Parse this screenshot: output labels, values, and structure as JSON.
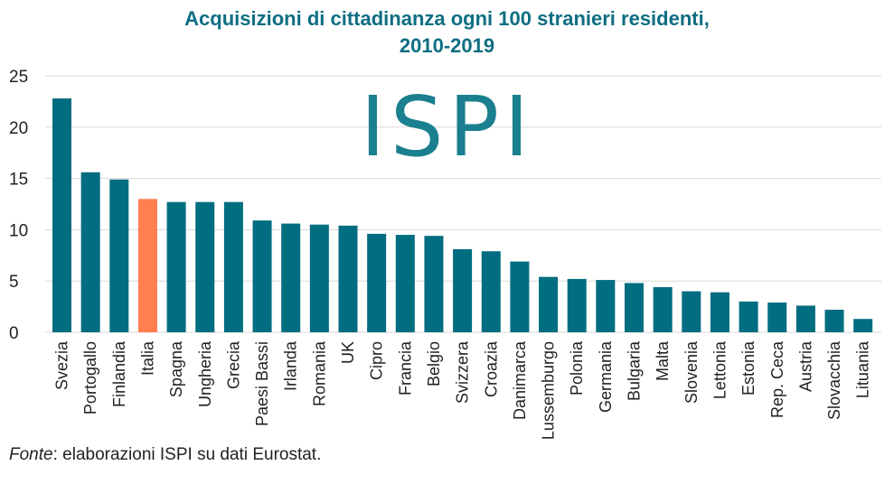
{
  "title_line1": "Acquisizioni di cittadinanza ogni 100 stranieri residenti,",
  "title_line2": "2010-2019",
  "logo_text": "ISPI",
  "source_label": "Fonte",
  "source_text": ": elaborazioni ISPI su dati Eurostat.",
  "colors": {
    "bar": "#006d80",
    "highlight": "#ff7f50",
    "logo": "#1a7f8e",
    "grid": "#d9d9d9"
  },
  "chart_data": {
    "type": "bar",
    "title": "Acquisizioni di cittadinanza ogni 100 stranieri residenti, 2010-2019",
    "xlabel": "",
    "ylabel": "",
    "ylim": [
      0,
      25
    ],
    "yticks": [
      0,
      5,
      10,
      15,
      20,
      25
    ],
    "grid": true,
    "highlight": "Italia",
    "categories": [
      "Svezia",
      "Portogallo",
      "Finlandia",
      "Italia",
      "Spagna",
      "Ungheria",
      "Grecia",
      "Paesi Bassi",
      "Irlanda",
      "Romania",
      "UK",
      "Cipro",
      "Francia",
      "Belgio",
      "Svizzera",
      "Croazia",
      "Danimarca",
      "Lussemburgo",
      "Polonia",
      "Germania",
      "Bulgaria",
      "Malta",
      "Slovenia",
      "Lettonia",
      "Estonia",
      "Rep. Ceca",
      "Austria",
      "Slovacchia",
      "Lituania"
    ],
    "values": [
      22.8,
      15.6,
      14.9,
      13.0,
      12.7,
      12.7,
      12.7,
      10.9,
      10.6,
      10.5,
      10.4,
      9.6,
      9.5,
      9.4,
      8.1,
      7.9,
      6.9,
      5.4,
      5.2,
      5.1,
      4.8,
      4.4,
      4.0,
      3.9,
      3.0,
      2.9,
      2.6,
      2.2,
      1.3
    ]
  }
}
